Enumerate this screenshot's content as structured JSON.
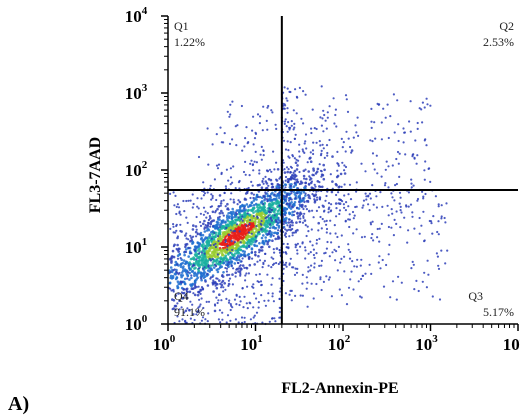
{
  "chart_data": {
    "type": "scatter",
    "subtype": "flow-cytometry density dot plot with quadrant gates",
    "panel_label": "A)",
    "xlabel": "FL2-Annexin-PE",
    "ylabel": "FL3-7AAD",
    "x_scale": "log",
    "y_scale": "log",
    "xlim": [
      1,
      10000
    ],
    "ylim": [
      1,
      10000
    ],
    "x_ticks": [
      {
        "base": "10",
        "exp": "0"
      },
      {
        "base": "10",
        "exp": "1"
      },
      {
        "base": "10",
        "exp": "2"
      },
      {
        "base": "10",
        "exp": "3"
      },
      {
        "base": "10",
        "exp": "4"
      }
    ],
    "y_ticks": [
      {
        "base": "10",
        "exp": "0"
      },
      {
        "base": "10",
        "exp": "1"
      },
      {
        "base": "10",
        "exp": "2"
      },
      {
        "base": "10",
        "exp": "3"
      },
      {
        "base": "10",
        "exp": "4"
      }
    ],
    "gates": {
      "x": 20,
      "y": 55
    },
    "quadrants": [
      {
        "name": "Q1",
        "percent": "1.22%"
      },
      {
        "name": "Q2",
        "percent": "2.53%"
      },
      {
        "name": "Q3",
        "percent": "5.17%"
      },
      {
        "name": "Q4",
        "percent": "91.1%"
      }
    ],
    "population": {
      "main_cluster_center": [
        6,
        14
      ],
      "event_fractions": {
        "Q1": 0.0122,
        "Q2": 0.0253,
        "Q3": 0.0517,
        "Q4": 0.911
      }
    },
    "colors": {
      "sparse": "#2e3fb8",
      "low": "#1f6fd0",
      "mid": "#1ab0a0",
      "high": "#9acd32",
      "peak": "#e8201a",
      "gate_line": "#000000"
    },
    "grid": false,
    "legend": "none"
  }
}
